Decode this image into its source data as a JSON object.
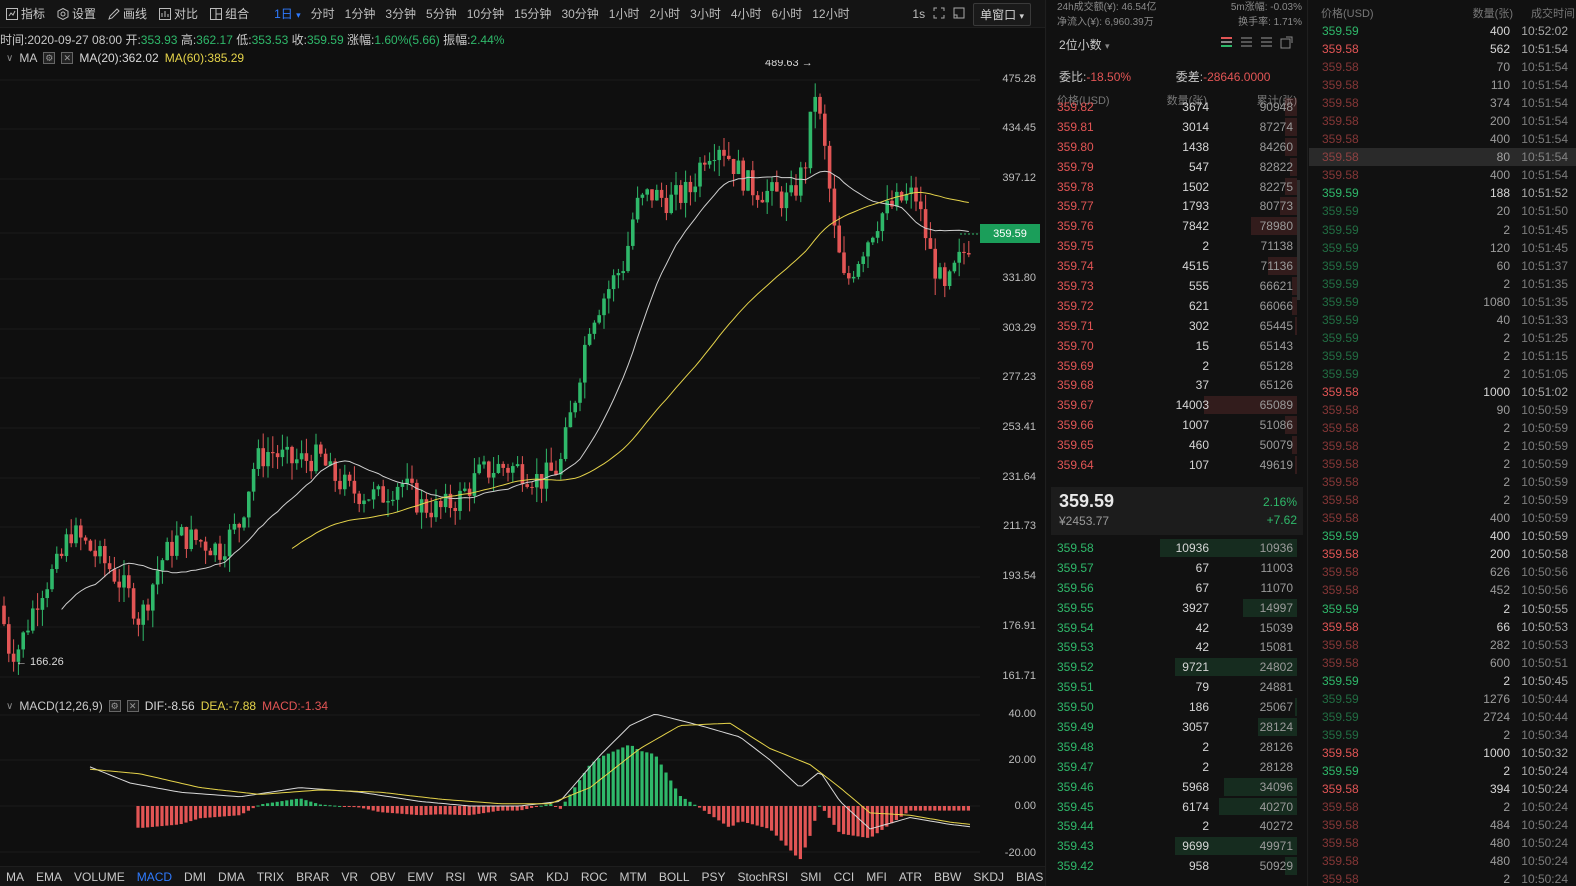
{
  "toolbar": {
    "indicator": "指标",
    "settings": "设置",
    "draw": "画线",
    "compare": "对比",
    "combine": "组合",
    "period": "1日",
    "intervals": [
      "分时",
      "1分钟",
      "3分钟",
      "5分钟",
      "10分钟",
      "15分钟",
      "30分钟",
      "1小时",
      "2小时",
      "3小时",
      "4小时",
      "6小时",
      "12小时"
    ],
    "refresh": "1s",
    "window_mode": "单窗口"
  },
  "info": {
    "time_label": "时间:",
    "time": "2020-09-27 08:00",
    "open_label": "开:",
    "open": "353.93",
    "high_label": "高:",
    "high": "362.17",
    "low_label": "低:",
    "low": "353.53",
    "close_label": "收:",
    "close": "359.59",
    "change_label": "涨幅:",
    "change": "1.60%(5.66)",
    "amp_label": "振幅:",
    "amp": "2.44%"
  },
  "ma": {
    "name": "MA",
    "ma20_label": "MA(20):362.02",
    "ma60_label": "MA(60):385.29"
  },
  "price_axis": [
    "475.28",
    "434.45",
    "397.12",
    "363.07",
    "331.80",
    "303.29",
    "277.23",
    "253.41",
    "231.64",
    "211.73",
    "193.54",
    "176.91",
    "161.71"
  ],
  "last_price_tag": "359.59",
  "annotations": {
    "high": "489.63 →",
    "low": "← 166.26"
  },
  "macd": {
    "name": "MACD(12,26,9)",
    "dif": "DIF:-8.56",
    "dea": "DEA:-7.88",
    "macd": "MACD:-1.34",
    "axis": [
      "40.00",
      "20.00",
      "0.00",
      "-20.00"
    ]
  },
  "indicators": [
    "MA",
    "EMA",
    "VOLUME",
    "MACD",
    "DMI",
    "DMA",
    "TRIX",
    "BRAR",
    "VR",
    "OBV",
    "EMV",
    "RSI",
    "WR",
    "SAR",
    "KDJ",
    "ROC",
    "MTM",
    "BOLL",
    "PSY",
    "StochRSI",
    "SMI",
    "CCI",
    "MFI",
    "ATR",
    "BBW",
    "SKDJ",
    "BIAS"
  ],
  "active_indicator": "MACD",
  "orderbook": {
    "vol24h": "24h成交额(¥): 46.54亿",
    "inflow": "净流入(¥): 6,960.39万",
    "premium_label": "5m涨幅: -0.03%",
    "spread": "换手率: 1.71%",
    "precision": "2位小数",
    "ratio_label": "委比:",
    "ratio": "-18.50%",
    "diff_label": "委差:",
    "diff": "-28646.0000",
    "col_price": "价格(USD)",
    "col_qty": "数量(张)",
    "col_cum": "累计(张)",
    "asks": [
      {
        "p": "359.82",
        "q": "3674",
        "c": "90948",
        "d": 0.05
      },
      {
        "p": "359.81",
        "q": "3014",
        "c": "87274",
        "d": 0.05
      },
      {
        "p": "359.80",
        "q": "1438",
        "c": "84260",
        "d": 0.05
      },
      {
        "p": "359.79",
        "q": "547",
        "c": "82822",
        "d": 0.03
      },
      {
        "p": "359.78",
        "q": "1502",
        "c": "82275",
        "d": 0.05
      },
      {
        "p": "359.77",
        "q": "1793",
        "c": "80773",
        "d": 0.07
      },
      {
        "p": "359.76",
        "q": "7842",
        "c": "78980",
        "d": 0.19
      },
      {
        "p": "359.75",
        "q": "2",
        "c": "71138",
        "d": 0.0
      },
      {
        "p": "359.74",
        "q": "4515",
        "c": "71136",
        "d": 0.12
      },
      {
        "p": "359.73",
        "q": "555",
        "c": "66621",
        "d": 0.02
      },
      {
        "p": "359.72",
        "q": "621",
        "c": "66066",
        "d": 0.02
      },
      {
        "p": "359.71",
        "q": "302",
        "c": "65445",
        "d": 0.01
      },
      {
        "p": "359.70",
        "q": "15",
        "c": "65143",
        "d": 0.0
      },
      {
        "p": "359.69",
        "q": "2",
        "c": "65128",
        "d": 0.0
      },
      {
        "p": "359.68",
        "q": "37",
        "c": "65126",
        "d": 0.0
      },
      {
        "p": "359.67",
        "q": "14003",
        "c": "65089",
        "d": 0.38
      },
      {
        "p": "359.66",
        "q": "1007",
        "c": "51086",
        "d": 0.05
      },
      {
        "p": "359.65",
        "q": "460",
        "c": "50079",
        "d": 0.02
      },
      {
        "p": "359.64",
        "q": "107",
        "c": "49619",
        "d": 0.01
      }
    ],
    "mid_price": "359.59",
    "mid_cny": "¥2453.77",
    "mid_pct": "2.16%",
    "mid_chg": "+7.62",
    "bids": [
      {
        "p": "359.58",
        "q": "10936",
        "c": "10936",
        "d": 0.56
      },
      {
        "p": "359.57",
        "q": "67",
        "c": "11003",
        "d": 0.0
      },
      {
        "p": "359.56",
        "q": "67",
        "c": "11070",
        "d": 0.0
      },
      {
        "p": "359.55",
        "q": "3927",
        "c": "14997",
        "d": 0.22
      },
      {
        "p": "359.54",
        "q": "42",
        "c": "15039",
        "d": 0.0
      },
      {
        "p": "359.53",
        "q": "42",
        "c": "15081",
        "d": 0.0
      },
      {
        "p": "359.52",
        "q": "9721",
        "c": "24802",
        "d": 0.5
      },
      {
        "p": "359.51",
        "q": "79",
        "c": "24881",
        "d": 0.0
      },
      {
        "p": "359.50",
        "q": "186",
        "c": "25067",
        "d": 0.01
      },
      {
        "p": "359.49",
        "q": "3057",
        "c": "28124",
        "d": 0.16
      },
      {
        "p": "359.48",
        "q": "2",
        "c": "28126",
        "d": 0.0
      },
      {
        "p": "359.47",
        "q": "2",
        "c": "28128",
        "d": 0.0
      },
      {
        "p": "359.46",
        "q": "5968",
        "c": "34096",
        "d": 0.3
      },
      {
        "p": "359.45",
        "q": "6174",
        "c": "40270",
        "d": 0.32
      },
      {
        "p": "359.44",
        "q": "2",
        "c": "40272",
        "d": 0.0
      },
      {
        "p": "359.43",
        "q": "9699",
        "c": "49971",
        "d": 0.5
      },
      {
        "p": "359.42",
        "q": "958",
        "c": "50929",
        "d": 0.05
      }
    ]
  },
  "trades": {
    "col_price": "价格(USD)",
    "col_qty": "数量(张)",
    "col_time": "成交时间",
    "rows": [
      {
        "p": "359.59",
        "q": "400",
        "t": "10:52:02",
        "s": "buy"
      },
      {
        "p": "359.58",
        "q": "562",
        "t": "10:51:54",
        "s": "sell"
      },
      {
        "p": "359.58",
        "q": "70",
        "t": "10:51:54",
        "s": "sell",
        "dim": true
      },
      {
        "p": "359.58",
        "q": "110",
        "t": "10:51:54",
        "s": "sell",
        "dim": true
      },
      {
        "p": "359.58",
        "q": "374",
        "t": "10:51:54",
        "s": "sell",
        "dim": true
      },
      {
        "p": "359.58",
        "q": "200",
        "t": "10:51:54",
        "s": "sell",
        "dim": true
      },
      {
        "p": "359.58",
        "q": "400",
        "t": "10:51:54",
        "s": "sell",
        "dim": true
      },
      {
        "p": "359.58",
        "q": "80",
        "t": "10:51:54",
        "s": "sell",
        "dim": true,
        "hl": true
      },
      {
        "p": "359.58",
        "q": "400",
        "t": "10:51:54",
        "s": "sell",
        "dim": true
      },
      {
        "p": "359.59",
        "q": "188",
        "t": "10:51:52",
        "s": "buy"
      },
      {
        "p": "359.59",
        "q": "20",
        "t": "10:51:50",
        "s": "buy",
        "dim": true
      },
      {
        "p": "359.59",
        "q": "2",
        "t": "10:51:45",
        "s": "buy",
        "dim": true
      },
      {
        "p": "359.59",
        "q": "120",
        "t": "10:51:45",
        "s": "buy",
        "dim": true
      },
      {
        "p": "359.59",
        "q": "60",
        "t": "10:51:37",
        "s": "buy",
        "dim": true
      },
      {
        "p": "359.59",
        "q": "2",
        "t": "10:51:35",
        "s": "buy",
        "dim": true
      },
      {
        "p": "359.59",
        "q": "1080",
        "t": "10:51:35",
        "s": "buy",
        "dim": true
      },
      {
        "p": "359.59",
        "q": "40",
        "t": "10:51:33",
        "s": "buy",
        "dim": true
      },
      {
        "p": "359.59",
        "q": "2",
        "t": "10:51:25",
        "s": "buy",
        "dim": true
      },
      {
        "p": "359.59",
        "q": "2",
        "t": "10:51:15",
        "s": "buy",
        "dim": true
      },
      {
        "p": "359.59",
        "q": "2",
        "t": "10:51:05",
        "s": "buy",
        "dim": true
      },
      {
        "p": "359.58",
        "q": "1000",
        "t": "10:51:02",
        "s": "sell"
      },
      {
        "p": "359.58",
        "q": "90",
        "t": "10:50:59",
        "s": "sell",
        "dim": true
      },
      {
        "p": "359.58",
        "q": "2",
        "t": "10:50:59",
        "s": "sell",
        "dim": true
      },
      {
        "p": "359.58",
        "q": "2",
        "t": "10:50:59",
        "s": "sell",
        "dim": true
      },
      {
        "p": "359.58",
        "q": "2",
        "t": "10:50:59",
        "s": "sell",
        "dim": true
      },
      {
        "p": "359.58",
        "q": "2",
        "t": "10:50:59",
        "s": "sell",
        "dim": true
      },
      {
        "p": "359.58",
        "q": "2",
        "t": "10:50:59",
        "s": "sell",
        "dim": true
      },
      {
        "p": "359.58",
        "q": "400",
        "t": "10:50:59",
        "s": "sell",
        "dim": true
      },
      {
        "p": "359.59",
        "q": "400",
        "t": "10:50:59",
        "s": "buy"
      },
      {
        "p": "359.58",
        "q": "200",
        "t": "10:50:58",
        "s": "sell"
      },
      {
        "p": "359.58",
        "q": "626",
        "t": "10:50:56",
        "s": "sell",
        "dim": true
      },
      {
        "p": "359.58",
        "q": "452",
        "t": "10:50:56",
        "s": "sell",
        "dim": true
      },
      {
        "p": "359.59",
        "q": "2",
        "t": "10:50:55",
        "s": "buy"
      },
      {
        "p": "359.58",
        "q": "66",
        "t": "10:50:53",
        "s": "sell"
      },
      {
        "p": "359.58",
        "q": "282",
        "t": "10:50:53",
        "s": "sell",
        "dim": true
      },
      {
        "p": "359.58",
        "q": "600",
        "t": "10:50:51",
        "s": "sell",
        "dim": true
      },
      {
        "p": "359.59",
        "q": "2",
        "t": "10:50:45",
        "s": "buy"
      },
      {
        "p": "359.59",
        "q": "1276",
        "t": "10:50:44",
        "s": "buy",
        "dim": true
      },
      {
        "p": "359.59",
        "q": "2724",
        "t": "10:50:44",
        "s": "buy",
        "dim": true
      },
      {
        "p": "359.59",
        "q": "2",
        "t": "10:50:34",
        "s": "buy",
        "dim": true
      },
      {
        "p": "359.58",
        "q": "1000",
        "t": "10:50:32",
        "s": "sell"
      },
      {
        "p": "359.59",
        "q": "2",
        "t": "10:50:24",
        "s": "buy"
      },
      {
        "p": "359.58",
        "q": "394",
        "t": "10:50:24",
        "s": "sell"
      },
      {
        "p": "359.58",
        "q": "2",
        "t": "10:50:24",
        "s": "sell",
        "dim": true
      },
      {
        "p": "359.58",
        "q": "484",
        "t": "10:50:24",
        "s": "sell",
        "dim": true
      },
      {
        "p": "359.58",
        "q": "480",
        "t": "10:50:24",
        "s": "sell",
        "dim": true
      },
      {
        "p": "359.58",
        "q": "480",
        "t": "10:50:24",
        "s": "sell",
        "dim": true
      },
      {
        "p": "359.58",
        "q": "2",
        "t": "10:50:24",
        "s": "sell",
        "dim": true
      }
    ]
  },
  "colors": {
    "up": "#2fb86a",
    "down": "#e25555",
    "ma20": "#d9d9d9",
    "ma60": "#e5d34a",
    "accent": "#2f7bff"
  },
  "chart_data": {
    "type": "candlestick",
    "instrument_price_range": [
      161.71,
      489.63
    ],
    "last": 359.59,
    "ma20": 362.02,
    "ma60": 385.29,
    "macd": {
      "dif": -8.56,
      "dea": -7.88,
      "macd": -1.34,
      "ylim": [
        -20,
        40
      ]
    }
  }
}
